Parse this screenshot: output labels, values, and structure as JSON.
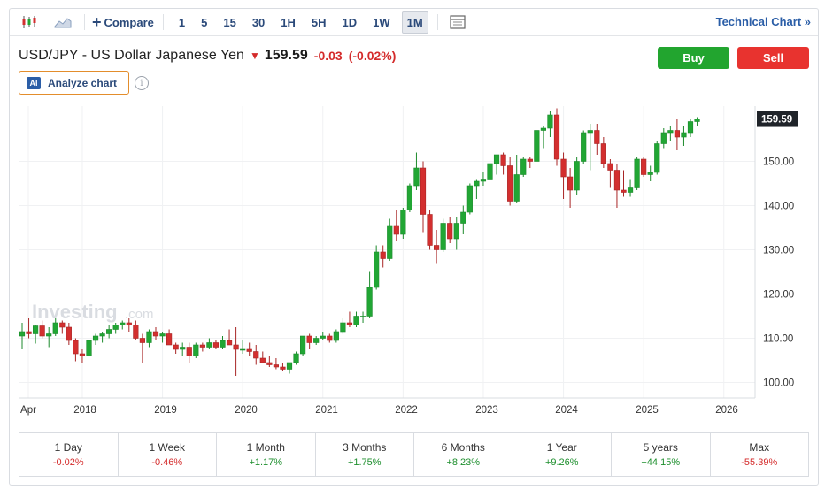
{
  "toolbar": {
    "compare_label": "Compare",
    "timeframes": [
      "1",
      "5",
      "15",
      "30",
      "1H",
      "5H",
      "1D",
      "1W",
      "1M"
    ],
    "active_timeframe": "1M",
    "technical_chart_label": "Technical Chart »"
  },
  "instrument": {
    "name": "USD/JPY - US Dollar Japanese Yen",
    "last": "159.59",
    "change": "-0.03",
    "change_pct": "(-0.02%)",
    "direction_icon": "arrow-down-icon"
  },
  "actions": {
    "buy_label": "Buy",
    "sell_label": "Sell",
    "analyze_label": "Analyze chart",
    "ai_badge": "AI"
  },
  "watermark": "Investing",
  "watermark_suffix": ".com",
  "colors": {
    "up": "#21a634",
    "down": "#d32f2f",
    "price_line": "#b52b2b",
    "price_tag": "#1f2329"
  },
  "chart_data": {
    "type": "candlestick",
    "interval": "1M",
    "y_ticks": [
      "100.00",
      "110.00",
      "120.00",
      "130.00",
      "140.00",
      "150.00"
    ],
    "ylim": [
      96.5,
      162.5
    ],
    "x_labels": [
      "Apr",
      "2018",
      "2019",
      "2020",
      "2021",
      "2022",
      "2023",
      "2024",
      "2025",
      "2026"
    ],
    "last_price_label": "159.59",
    "last_price": 159.59,
    "candles": [
      {
        "o": 110.5,
        "h": 113.5,
        "l": 107.5,
        "c": 111.5
      },
      {
        "o": 111.5,
        "h": 114.5,
        "l": 110.0,
        "c": 111.0
      },
      {
        "o": 111.0,
        "h": 113.0,
        "l": 108.8,
        "c": 112.8
      },
      {
        "o": 112.8,
        "h": 114.0,
        "l": 110.0,
        "c": 110.5
      },
      {
        "o": 110.5,
        "h": 112.5,
        "l": 108.0,
        "c": 111.0
      },
      {
        "o": 111.0,
        "h": 114.5,
        "l": 110.5,
        "c": 113.5
      },
      {
        "o": 113.5,
        "h": 114.0,
        "l": 111.0,
        "c": 112.5
      },
      {
        "o": 112.5,
        "h": 113.5,
        "l": 108.5,
        "c": 109.5
      },
      {
        "o": 109.5,
        "h": 110.0,
        "l": 104.8,
        "c": 106.5
      },
      {
        "o": 106.5,
        "h": 107.5,
        "l": 104.5,
        "c": 106.0
      },
      {
        "o": 106.0,
        "h": 110.0,
        "l": 105.0,
        "c": 109.5
      },
      {
        "o": 109.5,
        "h": 111.0,
        "l": 108.5,
        "c": 110.5
      },
      {
        "o": 110.5,
        "h": 111.5,
        "l": 109.0,
        "c": 111.0
      },
      {
        "o": 111.0,
        "h": 113.0,
        "l": 110.0,
        "c": 112.0
      },
      {
        "o": 112.0,
        "h": 113.5,
        "l": 111.0,
        "c": 113.0
      },
      {
        "o": 113.0,
        "h": 114.0,
        "l": 112.0,
        "c": 113.5
      },
      {
        "o": 113.5,
        "h": 114.5,
        "l": 111.5,
        "c": 113.0
      },
      {
        "o": 113.0,
        "h": 114.0,
        "l": 109.5,
        "c": 110.0
      },
      {
        "o": 110.0,
        "h": 111.0,
        "l": 104.5,
        "c": 109.0
      },
      {
        "o": 109.0,
        "h": 112.0,
        "l": 108.0,
        "c": 111.5
      },
      {
        "o": 111.5,
        "h": 112.5,
        "l": 109.5,
        "c": 110.5
      },
      {
        "o": 110.5,
        "h": 111.5,
        "l": 109.0,
        "c": 111.0
      },
      {
        "o": 111.0,
        "h": 112.0,
        "l": 108.5,
        "c": 108.5
      },
      {
        "o": 108.5,
        "h": 109.0,
        "l": 106.5,
        "c": 107.5
      },
      {
        "o": 107.5,
        "h": 109.0,
        "l": 106.0,
        "c": 108.0
      },
      {
        "o": 108.0,
        "h": 109.0,
        "l": 104.5,
        "c": 106.0
      },
      {
        "o": 106.0,
        "h": 109.0,
        "l": 105.5,
        "c": 108.5
      },
      {
        "o": 108.5,
        "h": 109.0,
        "l": 107.0,
        "c": 108.0
      },
      {
        "o": 108.0,
        "h": 110.0,
        "l": 107.5,
        "c": 109.0
      },
      {
        "o": 109.0,
        "h": 109.5,
        "l": 107.5,
        "c": 108.0
      },
      {
        "o": 108.0,
        "h": 110.5,
        "l": 107.5,
        "c": 109.5
      },
      {
        "o": 109.5,
        "h": 112.0,
        "l": 109.0,
        "c": 108.5
      },
      {
        "o": 108.5,
        "h": 112.5,
        "l": 101.5,
        "c": 107.5
      },
      {
        "o": 107.5,
        "h": 109.5,
        "l": 106.5,
        "c": 107.5
      },
      {
        "o": 107.5,
        "h": 109.0,
        "l": 106.0,
        "c": 107.0
      },
      {
        "o": 107.0,
        "h": 108.5,
        "l": 104.0,
        "c": 105.5
      },
      {
        "o": 105.5,
        "h": 107.0,
        "l": 104.5,
        "c": 104.5
      },
      {
        "o": 104.5,
        "h": 106.0,
        "l": 103.5,
        "c": 104.0
      },
      {
        "o": 104.0,
        "h": 105.5,
        "l": 103.0,
        "c": 103.5
      },
      {
        "o": 103.5,
        "h": 104.5,
        "l": 102.5,
        "c": 103.0
      },
      {
        "o": 103.0,
        "h": 104.5,
        "l": 102.0,
        "c": 104.5
      },
      {
        "o": 104.5,
        "h": 107.0,
        "l": 104.0,
        "c": 106.5
      },
      {
        "o": 106.5,
        "h": 110.5,
        "l": 106.0,
        "c": 110.5
      },
      {
        "o": 110.5,
        "h": 111.0,
        "l": 107.5,
        "c": 109.0
      },
      {
        "o": 109.0,
        "h": 110.5,
        "l": 108.5,
        "c": 110.0
      },
      {
        "o": 110.0,
        "h": 111.5,
        "l": 109.5,
        "c": 110.5
      },
      {
        "o": 110.5,
        "h": 111.0,
        "l": 109.0,
        "c": 109.5
      },
      {
        "o": 109.5,
        "h": 112.0,
        "l": 109.0,
        "c": 111.5
      },
      {
        "o": 111.5,
        "h": 114.5,
        "l": 111.0,
        "c": 113.5
      },
      {
        "o": 113.5,
        "h": 116.0,
        "l": 112.5,
        "c": 113.0
      },
      {
        "o": 113.0,
        "h": 116.0,
        "l": 112.5,
        "c": 115.0
      },
      {
        "o": 115.0,
        "h": 116.0,
        "l": 113.5,
        "c": 115.0
      },
      {
        "o": 115.0,
        "h": 125.0,
        "l": 114.5,
        "c": 121.5
      },
      {
        "o": 121.5,
        "h": 131.0,
        "l": 121.0,
        "c": 129.5
      },
      {
        "o": 129.5,
        "h": 131.0,
        "l": 126.0,
        "c": 128.0
      },
      {
        "o": 128.0,
        "h": 137.0,
        "l": 127.5,
        "c": 135.5
      },
      {
        "o": 135.5,
        "h": 139.0,
        "l": 132.0,
        "c": 133.5
      },
      {
        "o": 133.5,
        "h": 139.5,
        "l": 132.5,
        "c": 139.0
      },
      {
        "o": 139.0,
        "h": 145.0,
        "l": 138.5,
        "c": 144.5
      },
      {
        "o": 144.5,
        "h": 152.0,
        "l": 143.5,
        "c": 148.5
      },
      {
        "o": 148.5,
        "h": 150.0,
        "l": 134.0,
        "c": 138.0
      },
      {
        "o": 138.0,
        "h": 139.0,
        "l": 130.0,
        "c": 131.0
      },
      {
        "o": 131.0,
        "h": 134.5,
        "l": 127.0,
        "c": 130.0
      },
      {
        "o": 130.0,
        "h": 137.0,
        "l": 129.5,
        "c": 136.0
      },
      {
        "o": 136.0,
        "h": 137.5,
        "l": 131.5,
        "c": 132.5
      },
      {
        "o": 132.5,
        "h": 137.5,
        "l": 130.0,
        "c": 136.0
      },
      {
        "o": 136.0,
        "h": 140.0,
        "l": 133.5,
        "c": 138.5
      },
      {
        "o": 138.5,
        "h": 145.0,
        "l": 138.0,
        "c": 144.5
      },
      {
        "o": 144.5,
        "h": 146.0,
        "l": 141.5,
        "c": 145.5
      },
      {
        "o": 145.5,
        "h": 147.5,
        "l": 144.5,
        "c": 146.0
      },
      {
        "o": 146.0,
        "h": 150.0,
        "l": 145.0,
        "c": 149.5
      },
      {
        "o": 149.5,
        "h": 151.5,
        "l": 147.0,
        "c": 151.5
      },
      {
        "o": 151.5,
        "h": 152.0,
        "l": 147.0,
        "c": 149.0
      },
      {
        "o": 149.0,
        "h": 151.0,
        "l": 140.0,
        "c": 141.0
      },
      {
        "o": 141.0,
        "h": 151.5,
        "l": 140.5,
        "c": 147.0
      },
      {
        "o": 147.0,
        "h": 151.0,
        "l": 146.5,
        "c": 150.5
      },
      {
        "o": 150.5,
        "h": 151.0,
        "l": 148.5,
        "c": 150.0
      },
      {
        "o": 150.0,
        "h": 157.0,
        "l": 150.0,
        "c": 157.0
      },
      {
        "o": 157.0,
        "h": 158.0,
        "l": 153.0,
        "c": 157.5
      },
      {
        "o": 157.5,
        "h": 161.5,
        "l": 155.5,
        "c": 160.5
      },
      {
        "o": 160.5,
        "h": 162.0,
        "l": 149.0,
        "c": 150.5
      },
      {
        "o": 150.5,
        "h": 152.0,
        "l": 141.5,
        "c": 146.5
      },
      {
        "o": 146.5,
        "h": 148.5,
        "l": 139.5,
        "c": 143.5
      },
      {
        "o": 143.5,
        "h": 151.0,
        "l": 142.5,
        "c": 150.0
      },
      {
        "o": 150.0,
        "h": 157.0,
        "l": 149.5,
        "c": 156.5
      },
      {
        "o": 156.5,
        "h": 158.5,
        "l": 148.0,
        "c": 157.0
      },
      {
        "o": 157.0,
        "h": 158.5,
        "l": 151.5,
        "c": 154.0
      },
      {
        "o": 154.0,
        "h": 155.5,
        "l": 148.5,
        "c": 149.5
      },
      {
        "o": 149.5,
        "h": 150.5,
        "l": 144.0,
        "c": 148.0
      },
      {
        "o": 148.0,
        "h": 149.5,
        "l": 139.5,
        "c": 143.5
      },
      {
        "o": 143.5,
        "h": 148.0,
        "l": 142.0,
        "c": 143.0
      },
      {
        "o": 143.0,
        "h": 146.0,
        "l": 142.0,
        "c": 144.0
      },
      {
        "o": 144.0,
        "h": 151.0,
        "l": 143.5,
        "c": 150.5
      },
      {
        "o": 150.5,
        "h": 151.0,
        "l": 146.5,
        "c": 147.0
      },
      {
        "o": 147.0,
        "h": 149.0,
        "l": 145.5,
        "c": 147.5
      },
      {
        "o": 147.5,
        "h": 154.5,
        "l": 147.0,
        "c": 154.0
      },
      {
        "o": 154.0,
        "h": 157.5,
        "l": 153.0,
        "c": 156.5
      },
      {
        "o": 156.5,
        "h": 158.0,
        "l": 154.5,
        "c": 157.0
      },
      {
        "o": 157.0,
        "h": 159.5,
        "l": 152.5,
        "c": 155.5
      },
      {
        "o": 155.5,
        "h": 158.0,
        "l": 153.5,
        "c": 156.5
      },
      {
        "o": 156.5,
        "h": 159.5,
        "l": 155.5,
        "c": 159.0
      },
      {
        "o": 159.0,
        "h": 160.0,
        "l": 158.0,
        "c": 159.59
      }
    ]
  },
  "performance": [
    {
      "label": "1 Day",
      "value": "-0.02%",
      "dir": "neg"
    },
    {
      "label": "1 Week",
      "value": "-0.46%",
      "dir": "neg"
    },
    {
      "label": "1 Month",
      "value": "+1.17%",
      "dir": "pos"
    },
    {
      "label": "3 Months",
      "value": "+1.75%",
      "dir": "pos"
    },
    {
      "label": "6 Months",
      "value": "+8.23%",
      "dir": "pos"
    },
    {
      "label": "1 Year",
      "value": "+9.26%",
      "dir": "pos"
    },
    {
      "label": "5 years",
      "value": "+44.15%",
      "dir": "pos"
    },
    {
      "label": "Max",
      "value": "-55.39%",
      "dir": "neg"
    }
  ]
}
